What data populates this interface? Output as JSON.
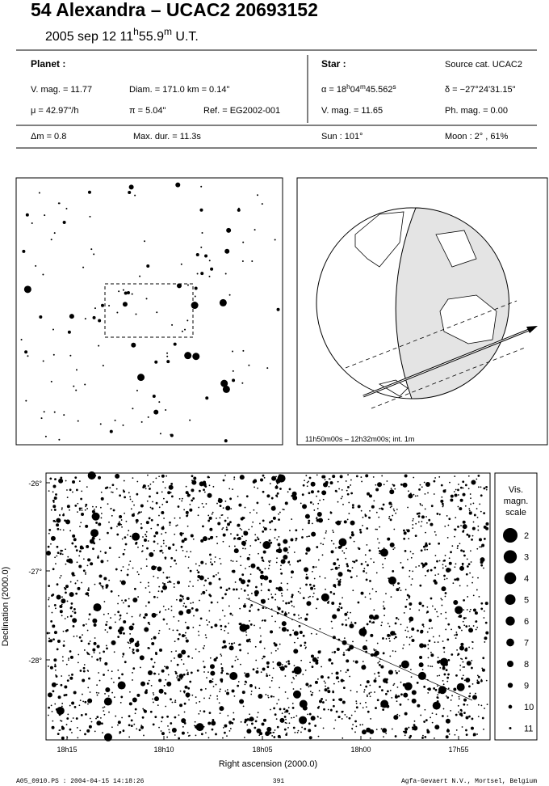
{
  "title": "54 Alexandra  –  UCAC2 20693152",
  "subtitle": [
    "2005 sep 12  11",
    "h",
    "55.9",
    "m",
    " U.T."
  ],
  "planet": {
    "heading": "Planet :",
    "vmag": "V. mag. = 11.77",
    "diam": "Diam. = 171.0 km = 0.14\"",
    "mu": "μ = 42.97\"/h",
    "parallax": "π =  5.04\"",
    "ref": "Ref. = EG2002-001"
  },
  "star": {
    "heading": "Star :",
    "source": "Source cat.  UCAC2",
    "ra": [
      "α = 18",
      "h",
      "04",
      "m",
      "45.562",
      "s"
    ],
    "dec": "δ = −27°24'31.15\"",
    "vmag": "V. mag. = 11.65",
    "phmag": "Ph. mag. =  0.00"
  },
  "summary": {
    "dm": "Δm = 0.8",
    "maxdur": "Max. dur. = 11.3s",
    "sun": "Sun : 101°",
    "moon": "Moon :   2° , 61%"
  },
  "globe_caption": "11h50m00s – 12h32m00s; int.  1m",
  "plot": {
    "yticks": [
      "-26°",
      "-27°",
      "-28°"
    ],
    "xticks": [
      "18h15",
      "18h10",
      "18h05",
      "18h00",
      "17h55"
    ],
    "xlabel": "Right ascension (2000.0)",
    "ylabel": "Declination (2000.0)"
  },
  "legend": {
    "title": [
      "Vis.",
      "magn.",
      "scale"
    ],
    "entries": [
      2,
      3,
      4,
      5,
      6,
      7,
      8,
      9,
      10,
      11
    ]
  },
  "footer": {
    "file": "A05_0910.PS : 2004-04-15 14:18:26",
    "page": "391",
    "org": "Agfa-Gevaert N.V., Mortsel, Belgium"
  }
}
